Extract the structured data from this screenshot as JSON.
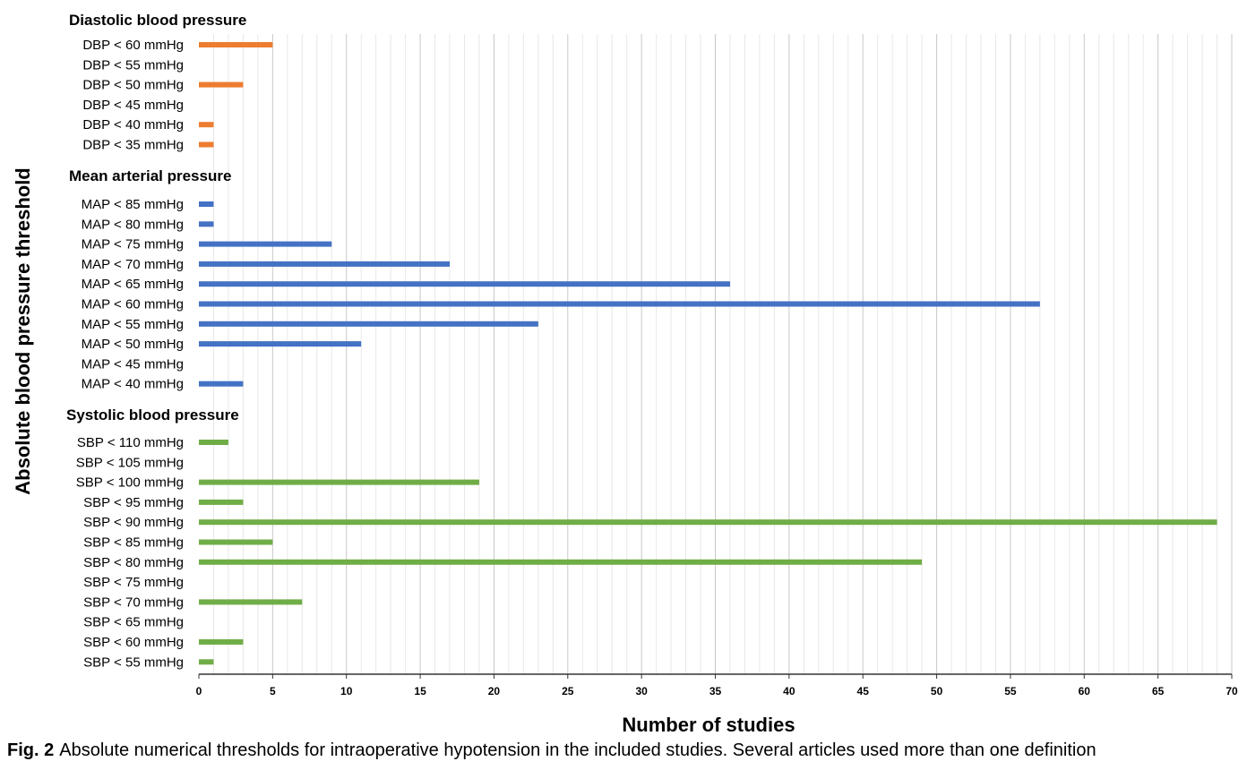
{
  "chart_data": {
    "type": "bar",
    "orientation": "horizontal",
    "xlabel": "Number of studies",
    "ylabel": "Absolute blood pressure threshold",
    "xlim": [
      0,
      70
    ],
    "xticks": [
      0,
      5,
      10,
      15,
      20,
      25,
      30,
      35,
      40,
      45,
      50,
      55,
      60,
      65,
      70
    ],
    "grid": true,
    "legend": "none",
    "groups": [
      {
        "name": "Diastolic blood pressure",
        "color": "#ED7D31",
        "categories": [
          "DBP < 60 mmHg",
          "DBP < 55 mmHg",
          "DBP < 50 mmHg",
          "DBP < 45 mmHg",
          "DBP < 40 mmHg",
          "DBP < 35 mmHg"
        ],
        "values": [
          5,
          0,
          3,
          0,
          1,
          1
        ]
      },
      {
        "name": "Mean arterial pressure",
        "color": "#4472C4",
        "categories": [
          "MAP < 85 mmHg",
          "MAP < 80 mmHg",
          "MAP < 75 mmHg",
          "MAP < 70 mmHg",
          "MAP < 65 mmHg",
          "MAP < 60 mmHg",
          "MAP < 55 mmHg",
          "MAP < 50 mmHg",
          "MAP < 45 mmHg",
          "MAP < 40 mmHg"
        ],
        "values": [
          1,
          1,
          9,
          17,
          36,
          57,
          23,
          11,
          0,
          3
        ]
      },
      {
        "name": "Systolic blood pressure",
        "color": "#70AD47",
        "categories": [
          "SBP < 110 mmHg",
          "SBP < 105 mmHg",
          "SBP < 100 mmHg",
          "SBP < 95 mmHg",
          "SBP < 90 mmHg",
          "SBP < 85 mmHg",
          "SBP < 80 mmHg",
          "SBP < 75 mmHg",
          "SBP < 70 mmHg",
          "SBP < 65 mmHg",
          "SBP < 60 mmHg",
          "SBP < 55 mmHg"
        ],
        "values": [
          2,
          0,
          19,
          3,
          69,
          5,
          49,
          0,
          7,
          0,
          3,
          1
        ]
      }
    ]
  },
  "caption": {
    "figure_number": "Fig. 2",
    "text": "Absolute numerical thresholds for intraoperative hypotension in the included studies. Several articles used more than one definition"
  }
}
